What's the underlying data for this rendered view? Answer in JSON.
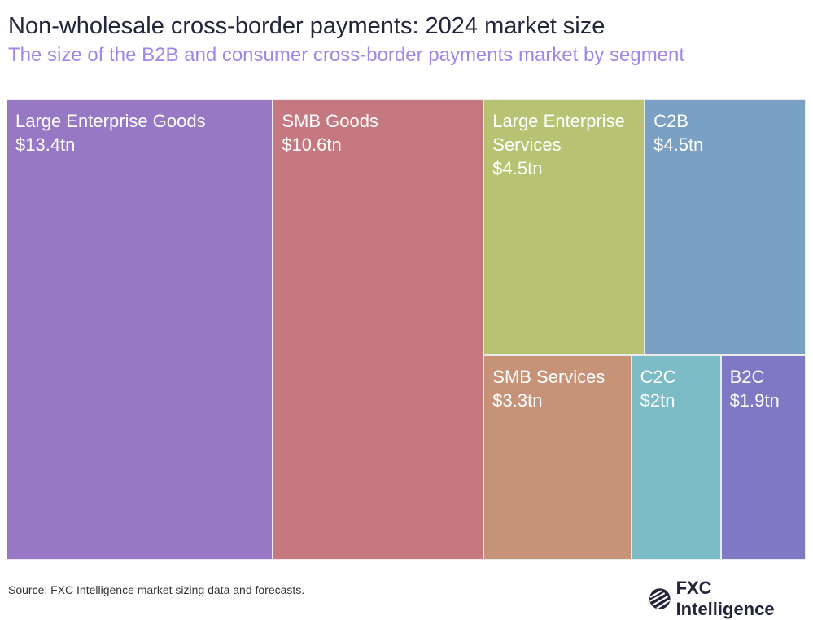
{
  "title": "Non-wholesale cross-border payments: 2024 market size",
  "subtitle": "The size of the B2B and consumer cross-border payments market by segment",
  "source": "Source: FXC Intelligence market sizing data and forecasts.",
  "logo": "FXC Intelligence",
  "chart_data": {
    "type": "treemap",
    "unit": "tn USD",
    "segments": [
      {
        "name": "Large Enterprise Goods",
        "value": 13.4,
        "label": "$13.4tn",
        "color": "#9678C4"
      },
      {
        "name": "SMB Goods",
        "value": 10.6,
        "label": "$10.6tn",
        "color": "#C57880"
      },
      {
        "name": "Large Enterprise Services",
        "value": 4.5,
        "label": "$4.5tn",
        "color": "#B7C372"
      },
      {
        "name": "C2B",
        "value": 4.5,
        "label": "$4.5tn",
        "color": "#7AA0C4"
      },
      {
        "name": "SMB Services",
        "value": 3.3,
        "label": "$3.3tn",
        "color": "#C69379"
      },
      {
        "name": "C2C",
        "value": 2,
        "label": "$2tn",
        "color": "#7BBCC6"
      },
      {
        "name": "B2C",
        "value": 1.9,
        "label": "$1.9tn",
        "color": "#7D79C5"
      }
    ]
  }
}
